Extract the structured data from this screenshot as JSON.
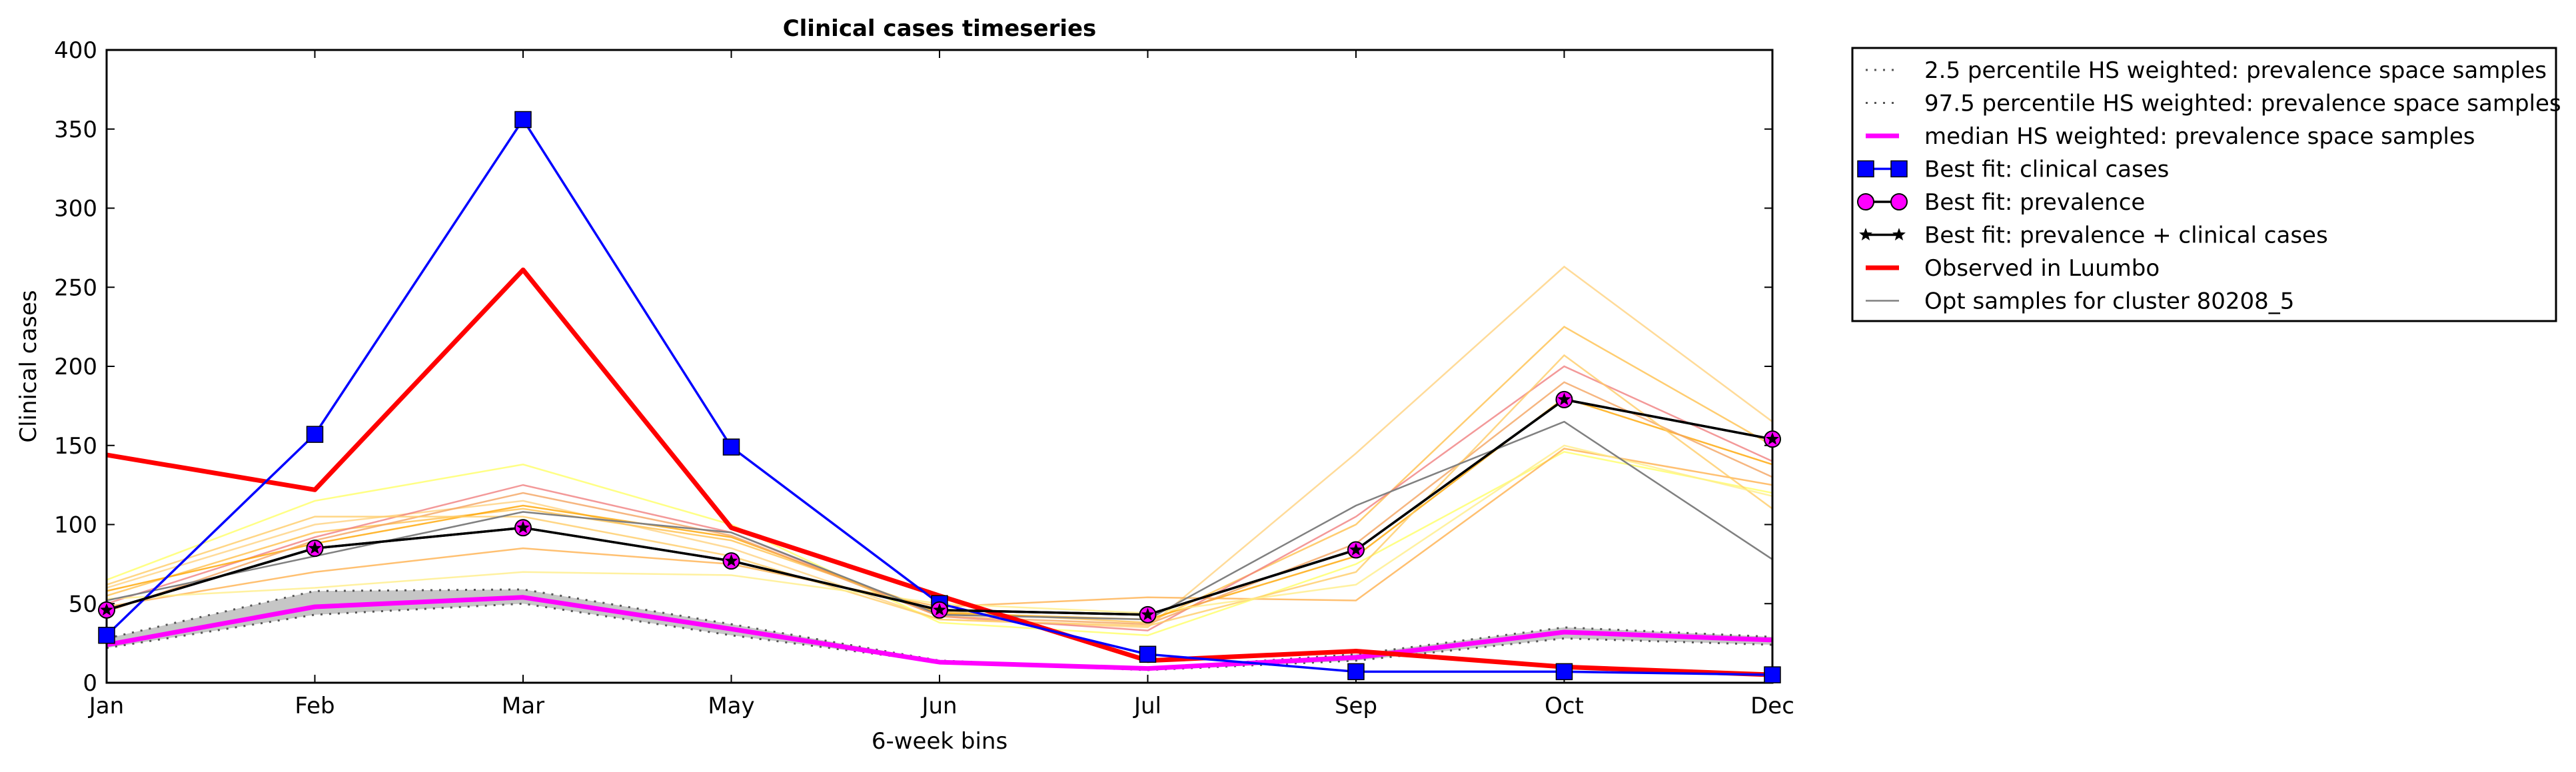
{
  "chart_data": {
    "type": "line",
    "title": "Clinical cases timeseries",
    "xlabel": "6-week bins",
    "ylabel": "Clinical cases",
    "categories": [
      "Jan",
      "Feb",
      "Mar",
      "May",
      "Jun",
      "Jul",
      "Sep",
      "Oct",
      "Dec"
    ],
    "ylim": [
      0,
      400
    ],
    "yticks": [
      "0",
      "50",
      "100",
      "150",
      "200",
      "250",
      "300",
      "350",
      "400"
    ],
    "grid": false,
    "legend_position": "outside-top-right",
    "band": {
      "color": "#c0c0c0",
      "lower": [
        22,
        43,
        50,
        30,
        13,
        8,
        14,
        28,
        24
      ],
      "upper": [
        28,
        58,
        59,
        37,
        14,
        9,
        18,
        35,
        29
      ]
    },
    "series": [
      {
        "name": "2.5 percentile HS weighted: prevalence space samples",
        "values": [
          22,
          43,
          50,
          30,
          13,
          8,
          14,
          28,
          24
        ],
        "color": "#555555",
        "style": "dotted",
        "marker": "none"
      },
      {
        "name": "97.5 percentile HS weighted: prevalence space samples",
        "values": [
          28,
          58,
          59,
          37,
          14,
          9,
          18,
          35,
          29
        ],
        "color": "#555555",
        "style": "dotted",
        "marker": "none"
      },
      {
        "name": "median HS weighted: prevalence space samples",
        "values": [
          24,
          48,
          54,
          34,
          13,
          9,
          16,
          32,
          27
        ],
        "color": "#ff00ff",
        "style": "solid",
        "marker": "none"
      },
      {
        "name": "Best fit: clinical cases",
        "values": [
          30,
          157,
          356,
          149,
          50,
          18,
          7,
          7,
          5
        ],
        "color": "#0000ff",
        "style": "solid",
        "marker": "square"
      },
      {
        "name": "Best fit: prevalence",
        "values": [
          46,
          85,
          98,
          77,
          46,
          43,
          84,
          179,
          154
        ],
        "color": "#000000",
        "style": "solid",
        "marker": "circle"
      },
      {
        "name": "Best fit: prevalence + clinical cases",
        "values": [
          46,
          85,
          98,
          77,
          46,
          43,
          84,
          179,
          154
        ],
        "color": "#000000",
        "style": "solid",
        "marker": "star"
      },
      {
        "name": "Observed in Luumbo",
        "values": [
          144,
          122,
          261,
          98,
          55,
          14,
          20,
          10,
          5
        ],
        "color": "#ff0000",
        "style": "solid",
        "marker": "none"
      },
      {
        "name": "Opt samples for cluster 80208_5",
        "values": [
          52,
          80,
          108,
          95,
          43,
          40,
          112,
          165,
          78
        ],
        "color": "#808080",
        "style": "solid",
        "marker": "none"
      }
    ],
    "background_series": [
      {
        "color": "#ffd27f",
        "values": [
          60,
          100,
          115,
          85,
          40,
          35,
          145,
          263,
          165
        ]
      },
      {
        "color": "#ffc04d",
        "values": [
          55,
          95,
          110,
          90,
          45,
          38,
          100,
          225,
          150
        ]
      },
      {
        "color": "#f08080",
        "values": [
          50,
          92,
          125,
          95,
          42,
          33,
          105,
          200,
          140
        ]
      },
      {
        "color": "#ffff66",
        "values": [
          65,
          115,
          138,
          100,
          38,
          30,
          75,
          146,
          120
        ]
      },
      {
        "color": "#ffb04d",
        "values": [
          48,
          70,
          85,
          75,
          48,
          54,
          52,
          148,
          125
        ]
      },
      {
        "color": "#ffa500",
        "values": [
          58,
          88,
          112,
          92,
          44,
          40,
          80,
          180,
          138
        ]
      },
      {
        "color": "#f4a460",
        "values": [
          45,
          90,
          120,
          93,
          42,
          37,
          88,
          190,
          130
        ]
      },
      {
        "color": "#ffcc66",
        "values": [
          62,
          105,
          105,
          80,
          40,
          36,
          70,
          207,
          110
        ]
      },
      {
        "color": "#ffee88",
        "values": [
          53,
          60,
          70,
          68,
          50,
          44,
          62,
          150,
          118
        ]
      }
    ]
  }
}
